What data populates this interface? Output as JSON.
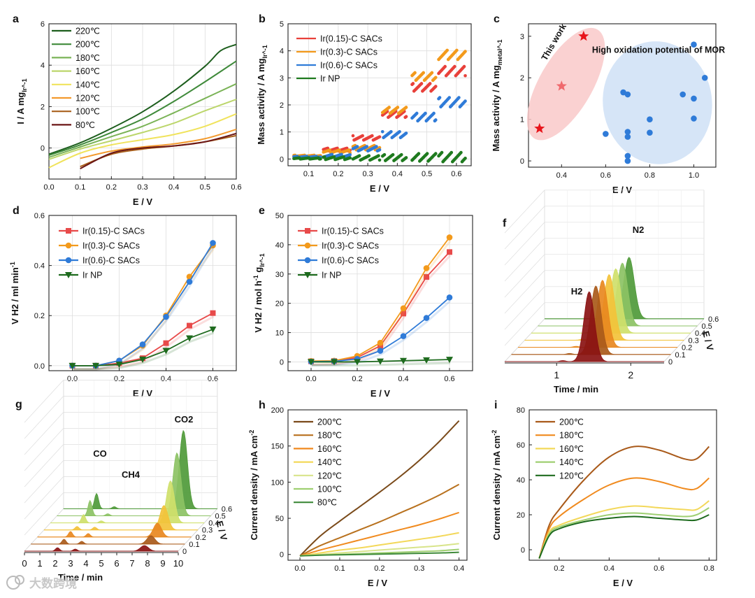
{
  "watermark": "大数跨境",
  "chart_data": [
    {
      "panel": "a",
      "type": "line",
      "xlabel": "E / V",
      "ylabel": "I / A mg_Ir^-1",
      "xlim": [
        0,
        0.6
      ],
      "ylim": [
        -1.5,
        6
      ],
      "xticks": [
        0.0,
        0.1,
        0.2,
        0.3,
        0.4,
        0.5,
        0.6
      ],
      "yticks": [
        0,
        2,
        4,
        6
      ],
      "grid": true,
      "legend_position": "top-left",
      "series": [
        {
          "name": "220℃",
          "color": "#1d5e1d",
          "x": [
            0.0,
            0.1,
            0.2,
            0.3,
            0.4,
            0.5,
            0.55,
            0.6
          ],
          "y": [
            -0.3,
            0.25,
            0.95,
            1.75,
            2.75,
            3.95,
            4.7,
            5.0
          ]
        },
        {
          "name": "200℃",
          "color": "#3f8a3a",
          "x": [
            0.0,
            0.1,
            0.2,
            0.3,
            0.4,
            0.5,
            0.6
          ],
          "y": [
            -0.35,
            0.15,
            0.75,
            1.4,
            2.25,
            3.2,
            4.2
          ]
        },
        {
          "name": "180℃",
          "color": "#7ab356",
          "x": [
            0.0,
            0.1,
            0.2,
            0.3,
            0.4,
            0.5,
            0.6
          ],
          "y": [
            -0.45,
            0.05,
            0.55,
            1.05,
            1.7,
            2.4,
            3.1
          ]
        },
        {
          "name": "160℃",
          "color": "#bcd66b",
          "x": [
            0.0,
            0.1,
            0.2,
            0.3,
            0.4,
            0.5,
            0.6
          ],
          "y": [
            -0.55,
            -0.05,
            0.35,
            0.75,
            1.2,
            1.8,
            2.35
          ]
        },
        {
          "name": "140℃",
          "color": "#f0e35c",
          "x": [
            0.0,
            0.1,
            0.2,
            0.3,
            0.4,
            0.5,
            0.6
          ],
          "y": [
            -0.95,
            -0.25,
            0.15,
            0.4,
            0.65,
            1.05,
            1.65
          ]
        },
        {
          "name": "120℃",
          "color": "#f39a2e",
          "x": [
            0.1,
            0.2,
            0.3,
            0.4,
            0.5,
            0.6
          ],
          "y": [
            -0.5,
            -0.15,
            0.05,
            0.2,
            0.45,
            0.9
          ]
        },
        {
          "name": "100℃",
          "color": "#a9601d",
          "x": [
            0.1,
            0.2,
            0.3,
            0.4,
            0.5,
            0.6
          ],
          "y": [
            -0.9,
            -0.3,
            -0.05,
            0.1,
            0.3,
            0.6
          ]
        },
        {
          "name": "80℃",
          "color": "#6b1616",
          "x": [
            0.1,
            0.2,
            0.3,
            0.4,
            0.5,
            0.6
          ],
          "y": [
            -1.0,
            -0.25,
            0.0,
            0.1,
            0.3,
            0.7
          ]
        }
      ]
    },
    {
      "panel": "b",
      "type": "scatter",
      "xlabel": "E / V",
      "ylabel": "Mass activity / A mg_Ir^-1",
      "xlim": [
        0.03,
        0.65
      ],
      "ylim": [
        -0.25,
        5
      ],
      "xticks": [
        0.1,
        0.2,
        0.3,
        0.4,
        0.5,
        0.6
      ],
      "yticks": [
        0,
        1,
        2,
        3,
        4,
        5
      ],
      "grid": true,
      "legend_position": "top-left",
      "series": [
        {
          "name": "Ir(0.15)-C SACs",
          "color": "#e8403a",
          "steps": [
            [
              0.05,
              0.14,
              0.1
            ],
            [
              0.15,
              0.24,
              0.35
            ],
            [
              0.25,
              0.34,
              0.78
            ],
            [
              0.35,
              0.43,
              1.65
            ],
            [
              0.45,
              0.53,
              2.65
            ],
            [
              0.54,
              0.63,
              3.25
            ]
          ]
        },
        {
          "name": "Ir(0.3)-C SACs",
          "color": "#f39a1c",
          "steps": [
            [
              0.05,
              0.14,
              0.12
            ],
            [
              0.15,
              0.24,
              0.28
            ],
            [
              0.25,
              0.34,
              0.42
            ],
            [
              0.35,
              0.43,
              1.8
            ],
            [
              0.45,
              0.53,
              3.05
            ],
            [
              0.54,
              0.63,
              3.85
            ]
          ]
        },
        {
          "name": "Ir(0.6)-C SACs",
          "color": "#2f7bd8",
          "steps": [
            [
              0.05,
              0.14,
              0.08
            ],
            [
              0.15,
              0.24,
              0.12
            ],
            [
              0.25,
              0.34,
              0.38
            ],
            [
              0.35,
              0.43,
              0.9
            ],
            [
              0.45,
              0.53,
              1.55
            ],
            [
              0.54,
              0.63,
              2.1
            ]
          ]
        },
        {
          "name": "Ir NP",
          "color": "#1e7a1e",
          "steps": [
            [
              0.05,
              0.14,
              0.02
            ],
            [
              0.15,
              0.24,
              0.03
            ],
            [
              0.25,
              0.34,
              0.04
            ],
            [
              0.35,
              0.43,
              0.05
            ],
            [
              0.45,
              0.53,
              0.06
            ],
            [
              0.54,
              0.63,
              0.07
            ]
          ]
        }
      ]
    },
    {
      "panel": "c",
      "type": "scatter",
      "xlabel": "E / V",
      "ylabel": "Mass activity / A mg_metal^-1",
      "xlim": [
        0.25,
        1.1
      ],
      "ylim": [
        -0.15,
        3.3
      ],
      "xticks": [
        0.4,
        0.6,
        0.8,
        1.0
      ],
      "yticks": [
        0,
        1,
        2,
        3
      ],
      "annotations": [
        "This work",
        "High oxidation potential of MOR"
      ],
      "series": [
        {
          "name": "This work",
          "color": "#e8141b",
          "x": [
            0.3,
            0.4,
            0.5
          ],
          "y": [
            0.78,
            1.8,
            3.0
          ]
        },
        {
          "name": "High oxidation potential of MOR",
          "color": "#2f7bd8",
          "x": [
            0.6,
            0.68,
            0.7,
            0.7,
            0.7,
            0.7,
            0.7,
            0.8,
            0.8,
            0.95,
            1.0,
            1.0,
            1.0,
            1.05
          ],
          "y": [
            0.65,
            1.65,
            1.6,
            0.7,
            0.58,
            0.12,
            0.0,
            1.0,
            0.68,
            1.6,
            2.8,
            1.5,
            1.02,
            2.0
          ]
        }
      ]
    },
    {
      "panel": "d",
      "type": "line",
      "xlabel": "E / V",
      "ylabel": "V H2 / ml min^-1",
      "xlim": [
        -0.1,
        0.7
      ],
      "ylim": [
        -0.02,
        0.6
      ],
      "xticks": [
        0.0,
        0.2,
        0.4,
        0.6
      ],
      "yticks": [
        0.0,
        0.2,
        0.4,
        0.6
      ],
      "grid": true,
      "legend_position": "top-left",
      "x": [
        0.0,
        0.1,
        0.2,
        0.3,
        0.4,
        0.5,
        0.6
      ],
      "series": [
        {
          "name": "Ir(0.15)-C SACs",
          "color": "#e84a4a",
          "marker": "square",
          "values": [
            0.0,
            0.0,
            0.01,
            0.03,
            0.09,
            0.16,
            0.21
          ]
        },
        {
          "name": "Ir(0.3)-C SACs",
          "color": "#f39a1c",
          "marker": "circle",
          "values": [
            0.0,
            0.0,
            0.02,
            0.08,
            0.2,
            0.355,
            0.48
          ]
        },
        {
          "name": "Ir(0.6)-C SACs",
          "color": "#2f7bd8",
          "marker": "circle",
          "values": [
            0.0,
            0.0,
            0.02,
            0.085,
            0.195,
            0.335,
            0.49
          ]
        },
        {
          "name": "Ir NP",
          "color": "#1e6b1e",
          "marker": "triangle-down",
          "values": [
            0.0,
            0.0,
            0.005,
            0.025,
            0.06,
            0.11,
            0.145
          ]
        }
      ]
    },
    {
      "panel": "e",
      "type": "line",
      "xlabel": "E / V",
      "ylabel": "V H2 / mol h^-1 g_Ir^-1",
      "xlim": [
        -0.1,
        0.7
      ],
      "ylim": [
        -3,
        50
      ],
      "xticks": [
        0.0,
        0.2,
        0.4,
        0.6
      ],
      "yticks": [
        0,
        10,
        20,
        30,
        40,
        50
      ],
      "grid": true,
      "legend_position": "top-left",
      "x": [
        0.0,
        0.1,
        0.2,
        0.3,
        0.4,
        0.5,
        0.6
      ],
      "series": [
        {
          "name": "Ir(0.15)-C SACs",
          "color": "#e84a4a",
          "marker": "square",
          "values": [
            0.2,
            0.3,
            1.5,
            5.5,
            16.5,
            29,
            37.5
          ]
        },
        {
          "name": "Ir(0.3)-C SACs",
          "color": "#f39a1c",
          "marker": "circle",
          "values": [
            0.3,
            0.4,
            2.0,
            6.5,
            18.3,
            32,
            42.5
          ]
        },
        {
          "name": "Ir(0.6)-C SACs",
          "color": "#2f7bd8",
          "marker": "circle",
          "values": [
            0.1,
            0.2,
            1.0,
            3.8,
            8.8,
            15,
            22
          ]
        },
        {
          "name": "Ir NP",
          "color": "#1e6b1e",
          "marker": "triangle-down",
          "values": [
            0.0,
            0.0,
            0.0,
            0.2,
            0.4,
            0.6,
            0.8
          ]
        }
      ]
    },
    {
      "panel": "f",
      "type": "area",
      "xlabel": "Time / min",
      "zlabel": "E / V",
      "xticks": [
        1,
        2
      ],
      "zticks": [
        "0",
        "0.1",
        "0.2",
        "0.3",
        "0.4",
        "0.5",
        "0.6"
      ],
      "peak_labels": [
        "H2",
        "N2"
      ],
      "colors": [
        "#8a1212",
        "#a95a1a",
        "#e8881f",
        "#f3c23a",
        "#cfe06a",
        "#8cc264",
        "#4f9a3a"
      ]
    },
    {
      "panel": "g",
      "type": "area",
      "xlabel": "Time / min",
      "zlabel": "E / V",
      "xticks": [
        0,
        1,
        2,
        3,
        4,
        5,
        6,
        7,
        8,
        9,
        10
      ],
      "zticks": [
        "0",
        "0.1",
        "0.2",
        "0.3",
        "0.4",
        "0.5",
        "0.6"
      ],
      "peak_labels": [
        "CO",
        "CH4",
        "CO2"
      ],
      "colors": [
        "#8a1212",
        "#a95a1a",
        "#e8881f",
        "#f3c23a",
        "#cfe06a",
        "#8cc264",
        "#4f9a3a"
      ]
    },
    {
      "panel": "h",
      "type": "line",
      "xlabel": "E / V",
      "ylabel": "Current density / mA cm^-2",
      "xlim": [
        -0.03,
        0.42
      ],
      "ylim": [
        -8,
        200
      ],
      "xticks": [
        0.0,
        0.1,
        0.2,
        0.3,
        0.4
      ],
      "yticks": [
        0,
        50,
        100,
        150,
        200
      ],
      "legend_position": "top-left",
      "x": [
        0.0,
        0.05,
        0.1,
        0.15,
        0.2,
        0.25,
        0.3,
        0.35,
        0.4
      ],
      "series": [
        {
          "name": "200℃",
          "color": "#7a4a1a",
          "values": [
            -2,
            25,
            46,
            66,
            86,
            107,
            130,
            156,
            185
          ]
        },
        {
          "name": "180℃",
          "color": "#b8711e",
          "values": [
            -2,
            12,
            23,
            34,
            45,
            57,
            69,
            82,
            97
          ]
        },
        {
          "name": "160℃",
          "color": "#f08a1e",
          "values": [
            -2,
            6,
            13,
            20,
            27,
            34,
            41,
            49,
            58
          ]
        },
        {
          "name": "140℃",
          "color": "#f3d85a",
          "values": [
            -2,
            2,
            6,
            9,
            13,
            17,
            21,
            25,
            30
          ]
        },
        {
          "name": "120℃",
          "color": "#d8e48a",
          "values": [
            -2,
            0,
            2,
            4,
            6,
            8,
            10,
            12,
            15
          ]
        },
        {
          "name": "100℃",
          "color": "#9fcf72",
          "values": [
            -2,
            -1,
            0,
            1,
            2,
            3,
            4,
            5,
            7
          ]
        },
        {
          "name": "80℃",
          "color": "#3f8a3a",
          "values": [
            -2,
            -1,
            -0.5,
            0,
            0.5,
            1,
            1.5,
            2,
            3
          ]
        }
      ]
    },
    {
      "panel": "i",
      "type": "line",
      "xlabel": "E / V",
      "ylabel": "Current density / mA cm^-2",
      "xlim": [
        0.08,
        0.83
      ],
      "ylim": [
        -6,
        80
      ],
      "xticks": [
        0.2,
        0.4,
        0.6,
        0.8
      ],
      "yticks": [
        0,
        20,
        40,
        60,
        80
      ],
      "legend_position": "top-left",
      "x": [
        0.12,
        0.16,
        0.2,
        0.3,
        0.4,
        0.5,
        0.6,
        0.7,
        0.75,
        0.8
      ],
      "series": [
        {
          "name": "200℃",
          "color": "#a95a1a",
          "values": [
            -5,
            14,
            23,
            40,
            53,
            59,
            57,
            52,
            52,
            59
          ]
        },
        {
          "name": "180℃",
          "color": "#f08a1e",
          "values": [
            -5,
            12,
            19,
            29,
            37,
            41,
            39,
            35,
            35,
            41
          ]
        },
        {
          "name": "160℃",
          "color": "#f3d85a",
          "values": [
            -5,
            10,
            14,
            19,
            23,
            25,
            24,
            23,
            23,
            28
          ]
        },
        {
          "name": "140℃",
          "color": "#9fcf72",
          "values": [
            -5,
            9,
            13,
            17,
            20,
            21,
            20,
            19,
            20,
            24
          ]
        },
        {
          "name": "120℃",
          "color": "#1e6b1e",
          "values": [
            -5,
            8,
            12,
            16,
            18,
            19,
            18,
            17,
            17,
            20
          ]
        }
      ]
    }
  ]
}
